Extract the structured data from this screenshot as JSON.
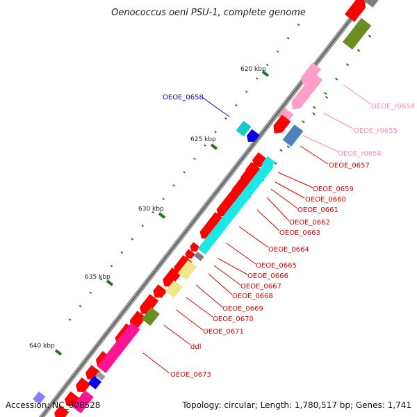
{
  "title": "Oenococcus oeni PSU-1, complete genome",
  "footer": {
    "accession": "Accession: NC_008528",
    "summary": "Topology: circular; Length: 1,780,517 bp; Genes: 1,741"
  },
  "kbp_labels": [
    "620 kbp",
    "625 kbp",
    "630 kbp",
    "635 kbp",
    "640 kbp"
  ],
  "gene_labels": {
    "blue": [
      "OEOE_0658"
    ],
    "pink": [
      "OEOE_r0654",
      "OEOE_r0655",
      "OEOE_r0656"
    ],
    "red": [
      "OEOE_0657",
      "OEOE_0659",
      "OEOE_0660",
      "OEOE_0661",
      "OEOE_0662",
      "OEOE_0663",
      "OEOE_0664",
      "OEOE_0665",
      "OEOE_0666",
      "OEOE_0667",
      "OEOE_0668",
      "OEOE_0669",
      "OEOE_0670",
      "OEOE_0671",
      "ddl",
      "OEOE_0673"
    ]
  },
  "colors": {
    "cds": "#ff0000",
    "rrna": "#ff9ec9",
    "cyan": "#1ee6e6",
    "navy": "#0000ee",
    "steelblue": "#4f81bd",
    "olive": "#6b8e23",
    "khaki": "#f0e68c",
    "magenta": "#ff1493",
    "gray": "#7f7f7f",
    "label_red": "#dd0000",
    "label_pink": "#ff88bb",
    "label_blue": "#0000cc",
    "tick": "#1a7a1a"
  }
}
